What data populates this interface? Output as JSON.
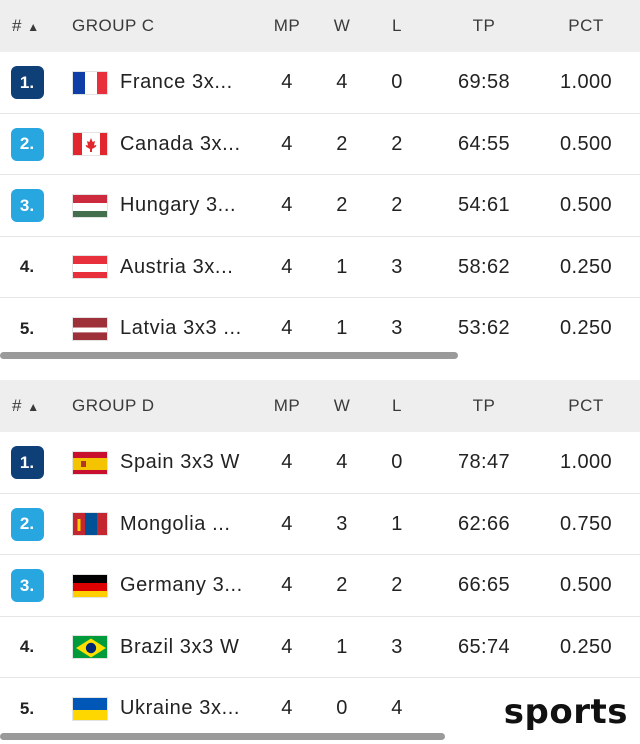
{
  "header_labels": {
    "rank": "#",
    "sort_indicator": "▲",
    "mp": "MP",
    "w": "W",
    "l": "L",
    "tp": "TP",
    "pct": "PCT"
  },
  "colors": {
    "rank_top": "#0f3f77",
    "rank_playoff": "#28a6e0",
    "header_bg": "#eeeeee"
  },
  "groups": [
    {
      "name": "GROUP C",
      "teams": [
        {
          "rank": "1.",
          "team": "France 3x...",
          "flag": "france",
          "mp": "4",
          "w": "4",
          "l": "0",
          "tp": "69:58",
          "pct": "1.000"
        },
        {
          "rank": "2.",
          "team": "Canada 3x...",
          "flag": "canada",
          "mp": "4",
          "w": "2",
          "l": "2",
          "tp": "64:55",
          "pct": "0.500"
        },
        {
          "rank": "3.",
          "team": "Hungary 3...",
          "flag": "hungary",
          "mp": "4",
          "w": "2",
          "l": "2",
          "tp": "54:61",
          "pct": "0.500"
        },
        {
          "rank": "4.",
          "team": "Austria 3x...",
          "flag": "austria",
          "mp": "4",
          "w": "1",
          "l": "3",
          "tp": "58:62",
          "pct": "0.250"
        },
        {
          "rank": "5.",
          "team": "Latvia 3x3 ...",
          "flag": "latvia",
          "mp": "4",
          "w": "1",
          "l": "3",
          "tp": "53:62",
          "pct": "0.250"
        }
      ]
    },
    {
      "name": "GROUP D",
      "teams": [
        {
          "rank": "1.",
          "team": "Spain 3x3 W",
          "flag": "spain",
          "mp": "4",
          "w": "4",
          "l": "0",
          "tp": "78:47",
          "pct": "1.000"
        },
        {
          "rank": "2.",
          "team": "Mongolia ...",
          "flag": "mongolia",
          "mp": "4",
          "w": "3",
          "l": "1",
          "tp": "62:66",
          "pct": "0.750"
        },
        {
          "rank": "3.",
          "team": "Germany 3...",
          "flag": "germany",
          "mp": "4",
          "w": "2",
          "l": "2",
          "tp": "66:65",
          "pct": "0.500"
        },
        {
          "rank": "4.",
          "team": "Brazil 3x3 W",
          "flag": "brazil",
          "mp": "4",
          "w": "1",
          "l": "3",
          "tp": "65:74",
          "pct": "0.250"
        },
        {
          "rank": "5.",
          "team": "Ukraine 3x...",
          "flag": "ukraine",
          "mp": "4",
          "w": "0",
          "l": "4",
          "tp": "",
          "pct": ""
        }
      ]
    }
  ],
  "watermark": "sports"
}
